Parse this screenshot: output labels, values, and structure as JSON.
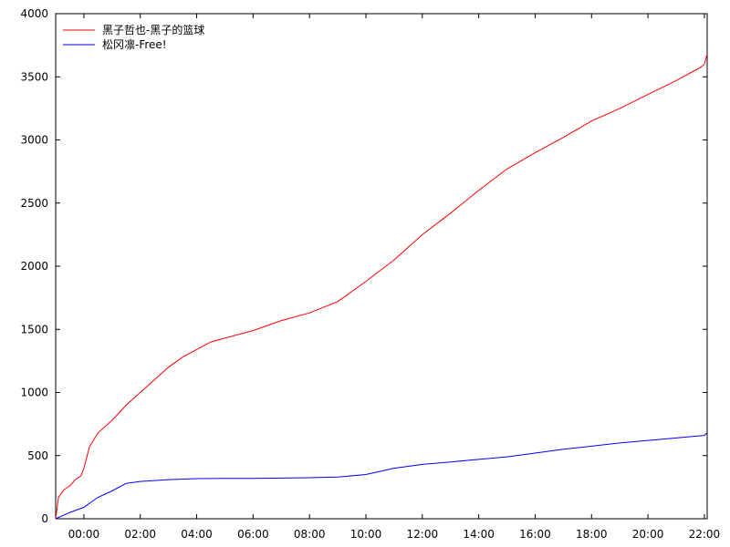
{
  "chart_data": {
    "type": "line",
    "title": "",
    "xlabel": "",
    "ylabel": "",
    "x_unit": "hours",
    "xlim": [
      -1.0,
      22.1
    ],
    "ylim": [
      0,
      4000
    ],
    "x_ticks": [
      {
        "value": 0,
        "label": "00:00"
      },
      {
        "value": 2,
        "label": "02:00"
      },
      {
        "value": 4,
        "label": "04:00"
      },
      {
        "value": 6,
        "label": "06:00"
      },
      {
        "value": 8,
        "label": "08:00"
      },
      {
        "value": 10,
        "label": "10:00"
      },
      {
        "value": 12,
        "label": "12:00"
      },
      {
        "value": 14,
        "label": "14:00"
      },
      {
        "value": 16,
        "label": "16:00"
      },
      {
        "value": 18,
        "label": "18:00"
      },
      {
        "value": 20,
        "label": "20:00"
      },
      {
        "value": 22,
        "label": "22:00"
      }
    ],
    "y_ticks": [
      0,
      500,
      1000,
      1500,
      2000,
      2500,
      3000,
      3500,
      4000
    ],
    "grid": false,
    "legend_position": "top-left",
    "series": [
      {
        "name": "黑子哲也-黑子的篮球",
        "color": "#ff0000",
        "points": [
          [
            -1.0,
            0
          ],
          [
            -0.9,
            170
          ],
          [
            -0.7,
            230
          ],
          [
            -0.5,
            260
          ],
          [
            -0.3,
            310
          ],
          [
            -0.1,
            340
          ],
          [
            0.0,
            400
          ],
          [
            0.2,
            570
          ],
          [
            0.5,
            680
          ],
          [
            1.0,
            780
          ],
          [
            1.5,
            900
          ],
          [
            2.0,
            1000
          ],
          [
            2.5,
            1100
          ],
          [
            3.0,
            1200
          ],
          [
            3.5,
            1280
          ],
          [
            4.0,
            1340
          ],
          [
            4.5,
            1400
          ],
          [
            5.0,
            1430
          ],
          [
            6.0,
            1490
          ],
          [
            7.0,
            1570
          ],
          [
            8.0,
            1630
          ],
          [
            9.0,
            1720
          ],
          [
            10.0,
            1880
          ],
          [
            11.0,
            2050
          ],
          [
            12.0,
            2250
          ],
          [
            13.0,
            2420
          ],
          [
            14.0,
            2600
          ],
          [
            15.0,
            2770
          ],
          [
            16.0,
            2900
          ],
          [
            17.0,
            3020
          ],
          [
            18.0,
            3150
          ],
          [
            19.0,
            3250
          ],
          [
            20.0,
            3360
          ],
          [
            21.0,
            3470
          ],
          [
            21.9,
            3580
          ],
          [
            22.0,
            3600
          ],
          [
            22.1,
            3680
          ]
        ]
      },
      {
        "name": "松冈凛-Free!",
        "color": "#0000ff",
        "points": [
          [
            -1.0,
            0
          ],
          [
            -0.5,
            50
          ],
          [
            0.0,
            90
          ],
          [
            0.5,
            170
          ],
          [
            1.0,
            220
          ],
          [
            1.5,
            280
          ],
          [
            2.0,
            295
          ],
          [
            3.0,
            310
          ],
          [
            4.0,
            318
          ],
          [
            5.0,
            320
          ],
          [
            6.0,
            320
          ],
          [
            7.0,
            322
          ],
          [
            8.0,
            325
          ],
          [
            9.0,
            330
          ],
          [
            10.0,
            350
          ],
          [
            11.0,
            400
          ],
          [
            12.0,
            430
          ],
          [
            13.0,
            450
          ],
          [
            14.0,
            470
          ],
          [
            15.0,
            490
          ],
          [
            16.0,
            520
          ],
          [
            17.0,
            550
          ],
          [
            18.0,
            575
          ],
          [
            19.0,
            600
          ],
          [
            20.0,
            620
          ],
          [
            21.0,
            640
          ],
          [
            22.0,
            660
          ],
          [
            22.1,
            680
          ]
        ]
      }
    ]
  }
}
